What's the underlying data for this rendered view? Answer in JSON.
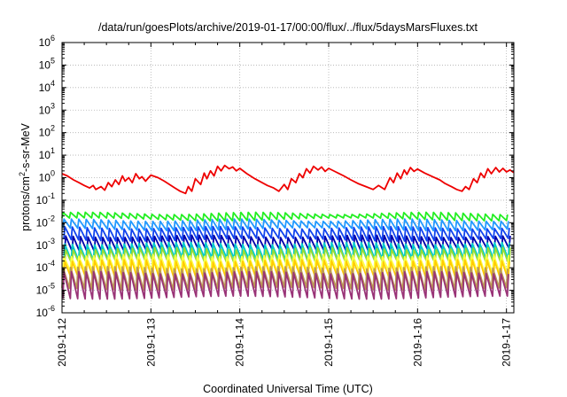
{
  "chart_data": {
    "type": "line",
    "title": "/data/run/goesPlots/archive/2019-01-17/00:00/flux/../flux/5daysMarsFluxes.txt",
    "xlabel": "Coordinated Universal Time (UTC)",
    "ylabel_main": "protons/cm",
    "ylabel_sup": "2",
    "ylabel_tail": "-s-sr-MeV",
    "xlim": [
      "2019-01-12",
      "2019-01-17 02:00"
    ],
    "ylim": [
      1e-06,
      1000000.0
    ],
    "yscale": "log",
    "grid": true,
    "x_ticks": [
      "2019-1-12",
      "2019-1-13",
      "2019-1-14",
      "2019-1-15",
      "2019-1-16",
      "2019-1-17"
    ],
    "y_ticks": [
      {
        "base": "10",
        "exp": "-6"
      },
      {
        "base": "10",
        "exp": "-5"
      },
      {
        "base": "10",
        "exp": "-4"
      },
      {
        "base": "10",
        "exp": "-3"
      },
      {
        "base": "10",
        "exp": "-2"
      },
      {
        "base": "10",
        "exp": "-1"
      },
      {
        "base": "10",
        "exp": "0"
      },
      {
        "base": "10",
        "exp": "1"
      },
      {
        "base": "10",
        "exp": "2"
      },
      {
        "base": "10",
        "exp": "3"
      },
      {
        "base": "10",
        "exp": "4"
      },
      {
        "base": "10",
        "exp": "5"
      },
      {
        "base": "10",
        "exp": "6"
      }
    ],
    "series": [
      {
        "color": "#ee0000",
        "x": [
          0.0,
          0.06,
          0.13,
          0.19,
          0.25,
          0.31,
          0.35,
          0.38,
          0.44,
          0.48,
          0.52,
          0.56,
          0.6,
          0.64,
          0.68,
          0.71,
          0.75,
          0.79,
          0.83,
          0.87,
          0.9,
          0.94,
          1.0,
          1.08,
          1.15,
          1.21,
          1.27,
          1.33,
          1.39,
          1.42,
          1.46,
          1.5,
          1.56,
          1.6,
          1.63,
          1.67,
          1.71,
          1.75,
          1.79,
          1.83,
          1.88,
          1.92,
          1.96,
          2.0,
          2.08,
          2.17,
          2.25,
          2.31,
          2.38,
          2.44,
          2.5,
          2.54,
          2.58,
          2.63,
          2.67,
          2.71,
          2.75,
          2.79,
          2.83,
          2.88,
          2.92,
          2.96,
          3.0,
          3.08,
          3.17,
          3.25,
          3.33,
          3.42,
          3.5,
          3.56,
          3.63,
          3.69,
          3.73,
          3.77,
          3.81,
          3.85,
          3.88,
          3.92,
          3.96,
          4.0,
          4.08,
          4.17,
          4.25,
          4.31,
          4.38,
          4.44,
          4.5,
          4.54,
          4.58,
          4.63,
          4.67,
          4.71,
          4.75,
          4.79,
          4.83,
          4.88,
          4.92,
          4.96,
          5.0,
          5.04,
          5.08
        ],
        "y": [
          1.5,
          1.2,
          0.8,
          0.6,
          0.45,
          0.35,
          0.45,
          0.3,
          0.4,
          0.28,
          0.6,
          0.4,
          0.8,
          0.5,
          1.2,
          0.7,
          1.0,
          0.6,
          1.5,
          0.9,
          1.1,
          0.7,
          1.3,
          1.0,
          0.7,
          0.5,
          0.35,
          0.25,
          0.2,
          0.4,
          0.25,
          0.9,
          0.5,
          1.6,
          0.9,
          2.0,
          1.2,
          3.2,
          2.0,
          3.5,
          2.5,
          3.0,
          2.0,
          2.6,
          1.5,
          0.9,
          0.6,
          0.45,
          0.35,
          0.25,
          0.5,
          0.3,
          0.9,
          0.6,
          1.5,
          1.0,
          2.5,
          1.6,
          3.2,
          2.2,
          3.0,
          1.9,
          2.6,
          1.8,
          1.2,
          0.8,
          0.55,
          0.4,
          0.3,
          0.45,
          0.3,
          1.0,
          0.6,
          1.6,
          0.9,
          2.2,
          1.4,
          2.8,
          1.9,
          2.4,
          1.6,
          1.1,
          0.8,
          0.55,
          0.4,
          0.3,
          0.25,
          0.4,
          0.3,
          0.9,
          0.6,
          1.6,
          1.0,
          2.5,
          1.5,
          2.8,
          1.8,
          2.6,
          1.8,
          2.2,
          1.7
        ]
      },
      {
        "color": "#22ee22",
        "base": 0.026,
        "depth": 0.55,
        "phase": 0.0
      },
      {
        "color": "#2299ff",
        "base": 0.013,
        "depth": 0.4,
        "phase": 0.01
      },
      {
        "color": "#1144ee",
        "base": 0.006,
        "depth": 0.3,
        "phase": 0.02
      },
      {
        "color": "#0000aa",
        "base": 0.0025,
        "depth": 0.25,
        "phase": 0.03
      },
      {
        "color": "#00cccc",
        "base": 0.0012,
        "depth": 0.2,
        "phase": 0.02
      },
      {
        "color": "#99dd33",
        "base": 0.0007,
        "depth": 0.2,
        "phase": 0.03
      },
      {
        "color": "#ffff44",
        "base": 0.00035,
        "depth": 0.18,
        "phase": 0.01
      },
      {
        "color": "#ffcc00",
        "base": 0.0002,
        "depth": 0.15,
        "phase": 0.02
      },
      {
        "color": "#bb9955",
        "base": 0.0001,
        "depth": 0.12,
        "phase": 0.0
      },
      {
        "color": "#993377",
        "base": 6e-05,
        "depth": 0.08,
        "phase": 0.01
      }
    ]
  }
}
